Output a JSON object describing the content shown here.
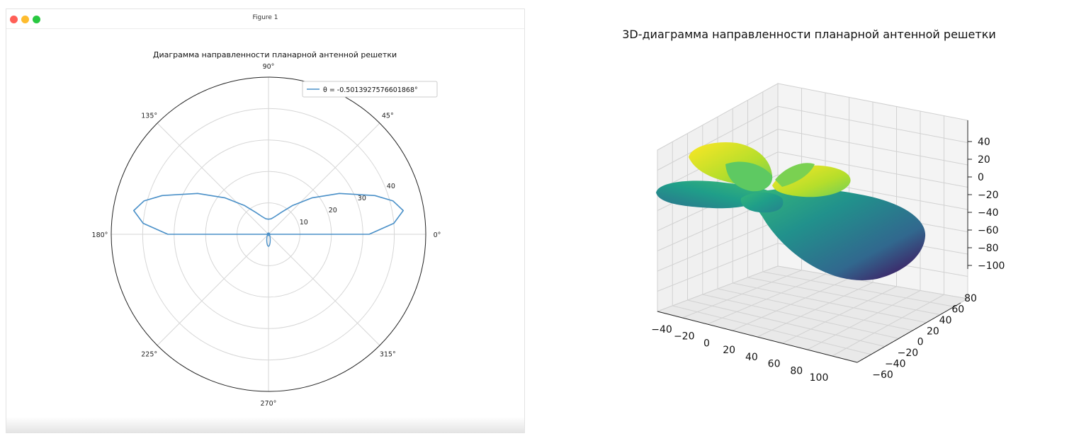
{
  "window": {
    "title": "Figure 1"
  },
  "chart_data": [
    {
      "type": "line",
      "subtype": "polar",
      "title": "Диаграмма направленности планарной антенной решетки",
      "angle_labels": [
        "0°",
        "45°",
        "90°",
        "135°",
        "180°",
        "225°",
        "270°",
        "315°"
      ],
      "radial_ticks": [
        10,
        20,
        30,
        40
      ],
      "radial_tick_labels": [
        "10",
        "20",
        "30",
        "40"
      ],
      "rmax": 50,
      "grid": true,
      "legend_position": "top-right",
      "series": [
        {
          "name": "θ = -0.5013927576601868°",
          "color": "#4a90c8",
          "points_deg_r": [
            [
              0,
              32
            ],
            [
              5,
              40
            ],
            [
              10,
              43.5
            ],
            [
              15,
              41
            ],
            [
              20,
              36
            ],
            [
              30,
              26
            ],
            [
              40,
              18
            ],
            [
              50,
              12
            ],
            [
              60,
              8
            ],
            [
              70,
              6
            ],
            [
              80,
              5
            ],
            [
              90,
              4.8
            ],
            [
              100,
              5
            ],
            [
              110,
              6
            ],
            [
              120,
              8
            ],
            [
              130,
              12
            ],
            [
              140,
              18
            ],
            [
              150,
              26
            ],
            [
              160,
              36
            ],
            [
              165,
              41
            ],
            [
              170,
              43.5
            ],
            [
              175,
              40
            ],
            [
              180,
              32
            ]
          ]
        }
      ]
    },
    {
      "type": "surface",
      "title": "3D-диаграмма направленности планарной антенной решетки",
      "x_ticks": [
        "−40",
        "−20",
        "0",
        "20",
        "40",
        "60",
        "80",
        "100"
      ],
      "y_ticks": [
        "−60",
        "−40",
        "−20",
        "0",
        "20",
        "40",
        "60",
        "80"
      ],
      "z_ticks": [
        "40",
        "20",
        "0",
        "−20",
        "−40",
        "−60",
        "−80",
        "−100"
      ],
      "colormap": "viridis",
      "grid": true
    }
  ]
}
